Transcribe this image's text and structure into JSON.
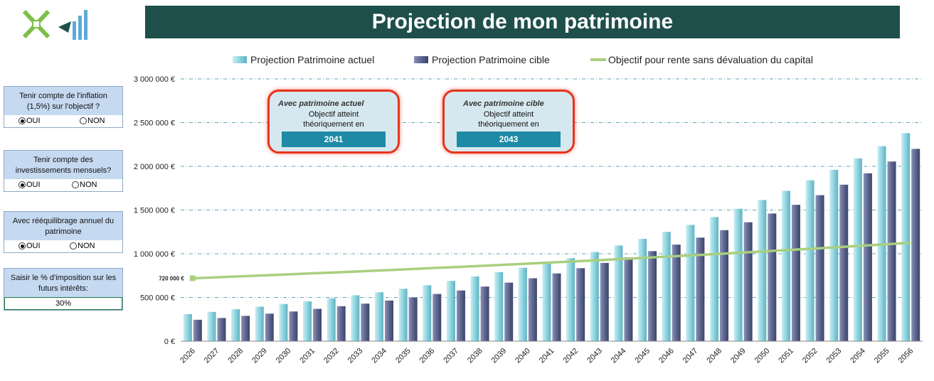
{
  "header": {
    "title": "Projection de mon patrimoine"
  },
  "logo": {
    "icon": "cross-and-bars-logo"
  },
  "panels": [
    {
      "question": "Tenir compte de l'inflation (1,5%) sur l'objectif ?",
      "options": [
        "OUI",
        "NON"
      ],
      "selected": "OUI"
    },
    {
      "question": "Tenir compte des investissements mensuels?",
      "options": [
        "OUI",
        "NON"
      ],
      "selected": "OUI"
    },
    {
      "question": "Avec rééquilibrage annuel du patrimoine",
      "options": [
        "OUI",
        "NON"
      ],
      "selected": "OUI"
    },
    {
      "question": "Saisir le % d'imposition sur les futurs intérêts:",
      "value": "30%"
    }
  ],
  "callouts": [
    {
      "title": "Avec patrimoine actuel",
      "text1": "Objectif atteint",
      "text2": "théoriquement en",
      "year": "2041"
    },
    {
      "title": "Avec patrimoine cible",
      "text1": "Objectif atteint",
      "text2": "théoriquement en",
      "year": "2043"
    }
  ],
  "chart_data": {
    "type": "bar",
    "categories": [
      "2026",
      "2027",
      "2028",
      "2029",
      "2030",
      "2031",
      "2032",
      "2033",
      "2034",
      "2035",
      "2036",
      "2037",
      "2038",
      "2039",
      "2040",
      "2041",
      "2042",
      "2043",
      "2044",
      "2045",
      "2046",
      "2047",
      "2048",
      "2049",
      "2050",
      "2051",
      "2052",
      "2053",
      "2054",
      "2055",
      "2056"
    ],
    "series": [
      {
        "name": "Projection Patrimoine actuel",
        "kind": "bar",
        "color": "#8fd3de",
        "values": [
          310000,
          335000,
          365000,
          395000,
          425000,
          455000,
          490000,
          525000,
          560000,
          600000,
          640000,
          690000,
          740000,
          790000,
          840000,
          890000,
          950000,
          1020000,
          1095000,
          1170000,
          1250000,
          1330000,
          1420000,
          1515000,
          1615000,
          1720000,
          1840000,
          1960000,
          2090000,
          2230000,
          2380000
        ]
      },
      {
        "name": "Projection Patrimoine cible",
        "kind": "bar",
        "color": "#5d6690",
        "values": [
          245000,
          265000,
          290000,
          315000,
          340000,
          370000,
          400000,
          430000,
          465000,
          500000,
          540000,
          580000,
          625000,
          670000,
          720000,
          775000,
          835000,
          895000,
          960000,
          1030000,
          1105000,
          1185000,
          1270000,
          1360000,
          1460000,
          1560000,
          1670000,
          1790000,
          1920000,
          2055000,
          2200000
        ]
      },
      {
        "name": "Objectif pour rente sans dévaluation du capital",
        "kind": "line",
        "color": "#a9cf7f",
        "values": [
          720000,
          731000,
          742000,
          753000,
          764000,
          776000,
          787000,
          799000,
          811000,
          823000,
          836000,
          848000,
          861000,
          874000,
          887000,
          900000,
          914000,
          927000,
          941000,
          955000,
          970000,
          984000,
          999000,
          1014000,
          1029000,
          1045000,
          1060000,
          1076000,
          1092000,
          1109000,
          1125000
        ]
      }
    ],
    "yticks": [
      "0 €",
      "500 000 €",
      "1 000 000 €",
      "1 500 000 €",
      "2 000 000 €",
      "2 500 000 €",
      "3 000 000 €"
    ],
    "ylim": [
      0,
      3000000
    ],
    "start_label": "720 000 €",
    "legend_position": "top",
    "grid": true
  }
}
